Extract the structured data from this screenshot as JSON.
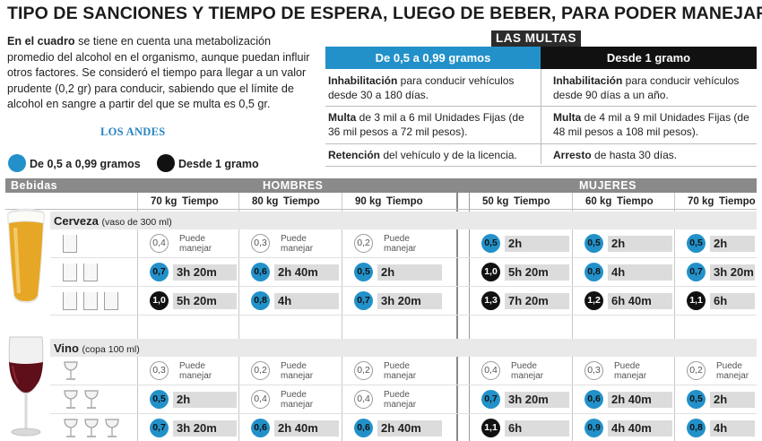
{
  "title": "TIPO DE SANCIONES Y TIEMPO DE ESPERA, LUEGO DE BEBER, PARA PODER MANEJAR",
  "intro": {
    "lead": "En el cuadro",
    "text": " se tiene en cuenta una metabolización promedio del alcohol en el organismo, aunque puedan influir otros factores. Se consideró el tiempo para llegar a un valor prudente (0,2 gr) para conducir, sabiendo que el límite de alcohol en sangre a partir del que se multa es 0,5 gr."
  },
  "source": "LOS ANDES",
  "multas": {
    "tab": "LAS MULTAS",
    "col1_header": "De 0,5 a 0,99 gramos",
    "col2_header": "Desde 1 gramo",
    "rows": [
      {
        "c1_bold": "Inhabilitación",
        "c1_rest": " para conducir vehículos desde 30 a 180 días.",
        "c2_bold": "Inhabilitación",
        "c2_rest": " para conducir vehículos desde 90 días a un año."
      },
      {
        "c1_bold": "Multa",
        "c1_rest": " de 3 mil a 6 mil Unidades Fijas (de 36 mil pesos a 72 mil pesos).",
        "c2_bold": "Multa",
        "c2_rest": " de 4 mil a 9 mil  Unidades Fijas (de 48 mil pesos a 108 mil pesos)."
      },
      {
        "c1_bold": "Retención",
        "c1_rest": " del vehículo y de la licencia.",
        "c2_bold": "Arresto",
        "c2_rest": " de hasta 30 días."
      }
    ]
  },
  "legend": {
    "blue_label": "De 0,5 a 0,99 gramos",
    "black_label": "Desde 1 gramo",
    "blue_color": "#2391c9",
    "black_color": "#111111"
  },
  "table": {
    "bebidas_label": "Bebidas",
    "hombres_label": "HOMBRES",
    "mujeres_label": "MUJERES",
    "tiempo_label": "Tiempo",
    "groups": [
      {
        "weight": "70 kg"
      },
      {
        "weight": "80 kg"
      },
      {
        "weight": "90 kg"
      },
      {
        "weight": "50 kg"
      },
      {
        "weight": "60 kg"
      },
      {
        "weight": "70 kg"
      }
    ],
    "puede_line1": "Puede",
    "puede_line2": "manejar",
    "categories": [
      {
        "name": "Cerveza",
        "detail": "(vaso de 300 ml)",
        "rows": [
          {
            "glasses": 1,
            "cells": [
              {
                "level": "0,4",
                "kind": "light",
                "time": null
              },
              {
                "level": "0,3",
                "kind": "light",
                "time": null
              },
              {
                "level": "0,2",
                "kind": "light",
                "time": null
              },
              {
                "level": "0,5",
                "kind": "blue",
                "time": "2h"
              },
              {
                "level": "0,5",
                "kind": "blue",
                "time": "2h"
              },
              {
                "level": "0,5",
                "kind": "blue",
                "time": "2h"
              }
            ]
          },
          {
            "glasses": 2,
            "cells": [
              {
                "level": "0,7",
                "kind": "blue",
                "time": "3h 20m"
              },
              {
                "level": "0,6",
                "kind": "blue",
                "time": "2h 40m"
              },
              {
                "level": "0,5",
                "kind": "blue",
                "time": "2h"
              },
              {
                "level": "1,0",
                "kind": "black",
                "time": "5h 20m"
              },
              {
                "level": "0,8",
                "kind": "blue",
                "time": "4h"
              },
              {
                "level": "0,7",
                "kind": "blue",
                "time": "3h 20m"
              }
            ]
          },
          {
            "glasses": 3,
            "cells": [
              {
                "level": "1,0",
                "kind": "black",
                "time": "5h 20m"
              },
              {
                "level": "0,8",
                "kind": "blue",
                "time": "4h"
              },
              {
                "level": "0,7",
                "kind": "blue",
                "time": "3h 20m"
              },
              {
                "level": "1,3",
                "kind": "black",
                "time": "7h 20m"
              },
              {
                "level": "1,2",
                "kind": "black",
                "time": "6h 40m"
              },
              {
                "level": "1,1",
                "kind": "black",
                "time": "6h"
              }
            ]
          }
        ]
      },
      {
        "name": "Vino",
        "detail": "(copa 100 ml)",
        "rows": [
          {
            "glasses": 1,
            "cells": [
              {
                "level": "0,3",
                "kind": "light",
                "time": null
              },
              {
                "level": "0,2",
                "kind": "light",
                "time": null
              },
              {
                "level": "0,2",
                "kind": "light",
                "time": null
              },
              {
                "level": "0,4",
                "kind": "light",
                "time": null
              },
              {
                "level": "0,3",
                "kind": "light",
                "time": null
              },
              {
                "level": "0,2",
                "kind": "light",
                "time": null
              }
            ]
          },
          {
            "glasses": 2,
            "cells": [
              {
                "level": "0,5",
                "kind": "blue",
                "time": "2h"
              },
              {
                "level": "0,4",
                "kind": "light",
                "time": null
              },
              {
                "level": "0,4",
                "kind": "light",
                "time": null
              },
              {
                "level": "0,7",
                "kind": "blue",
                "time": "3h 20m"
              },
              {
                "level": "0,6",
                "kind": "blue",
                "time": "2h 40m"
              },
              {
                "level": "0,5",
                "kind": "blue",
                "time": "2h"
              }
            ]
          },
          {
            "glasses": 3,
            "cells": [
              {
                "level": "0,7",
                "kind": "blue",
                "time": "3h 20m"
              },
              {
                "level": "0,6",
                "kind": "blue",
                "time": "2h 40m"
              },
              {
                "level": "0,6",
                "kind": "blue",
                "time": "2h 40m"
              },
              {
                "level": "1,1",
                "kind": "black",
                "time": "6h"
              },
              {
                "level": "0,9",
                "kind": "blue",
                "time": "4h 40m"
              },
              {
                "level": "0,8",
                "kind": "blue",
                "time": "4h"
              }
            ]
          }
        ]
      }
    ]
  }
}
